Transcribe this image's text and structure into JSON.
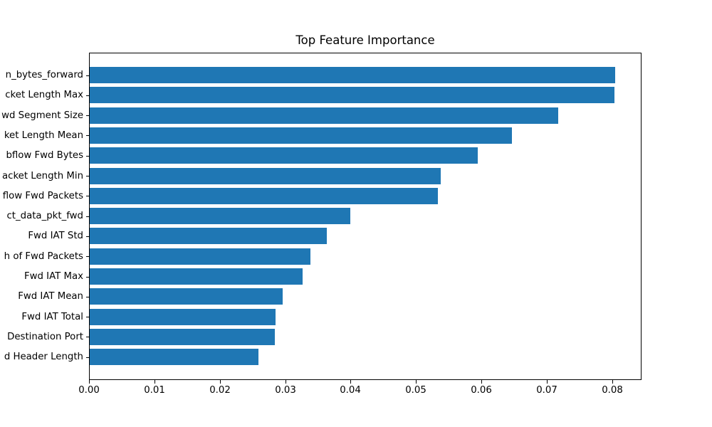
{
  "chart_data": {
    "type": "bar",
    "orientation": "horizontal",
    "title": "Top Feature Importance",
    "xlabel": "",
    "ylabel": "",
    "categories": [
      "n_bytes_forward",
      "cket Length Max",
      "wd Segment Size",
      "ket Length Mean",
      "bflow Fwd Bytes",
      "acket Length Min",
      "flow Fwd Packets",
      "ct_data_pkt_fwd",
      "Fwd IAT Std",
      "h of Fwd Packets",
      "Fwd IAT Max",
      "Fwd IAT Mean",
      "Fwd IAT Total",
      "Destination Port",
      "d Header Length"
    ],
    "values": [
      0.0804,
      0.0803,
      0.0717,
      0.0646,
      0.0593,
      0.0537,
      0.0533,
      0.0399,
      0.0363,
      0.0338,
      0.0326,
      0.0295,
      0.0284,
      0.0283,
      0.0258
    ],
    "xlim": [
      0,
      0.0845
    ],
    "x_tick_values": [
      0.0,
      0.01,
      0.02,
      0.03,
      0.04,
      0.05,
      0.06,
      0.07,
      0.08
    ],
    "x_tick_labels": [
      "0.00",
      "0.01",
      "0.02",
      "0.03",
      "0.04",
      "0.05",
      "0.06",
      "0.07",
      "0.08"
    ],
    "bar_color": "#1f77b4",
    "grid": false,
    "legend_position": "none"
  }
}
